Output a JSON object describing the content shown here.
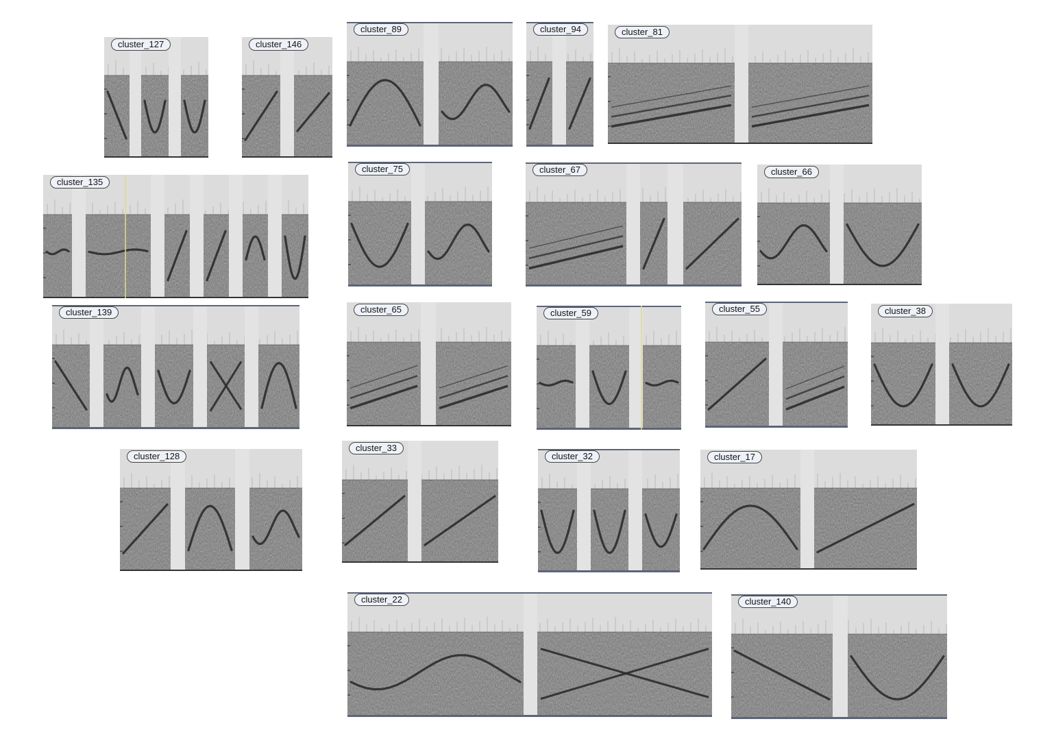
{
  "colors": {
    "page_background": "#ffffff",
    "spectrogram_top": "#dcdcdc",
    "spectrogram_noise": "#7b7b7b",
    "gap_fill": "#e3e3e3",
    "contour_stroke": "#2b2b2b",
    "badge_background": "#eef2f8",
    "badge_border": "#444444",
    "frame_bar": "#5c6478",
    "highlight_line": "#e8e34a"
  },
  "clusters": [
    {
      "label": "cluster_127"
    },
    {
      "label": "cluster_146"
    },
    {
      "label": "cluster_89"
    },
    {
      "label": "cluster_94"
    },
    {
      "label": "cluster_81"
    },
    {
      "label": "cluster_135"
    },
    {
      "label": "cluster_75"
    },
    {
      "label": "cluster_67"
    },
    {
      "label": "cluster_66"
    },
    {
      "label": "cluster_139"
    },
    {
      "label": "cluster_65"
    },
    {
      "label": "cluster_59"
    },
    {
      "label": "cluster_55"
    },
    {
      "label": "cluster_38"
    },
    {
      "label": "cluster_128"
    },
    {
      "label": "cluster_33"
    },
    {
      "label": "cluster_32"
    },
    {
      "label": "cluster_17"
    },
    {
      "label": "cluster_22"
    },
    {
      "label": "cluster_140"
    }
  ]
}
